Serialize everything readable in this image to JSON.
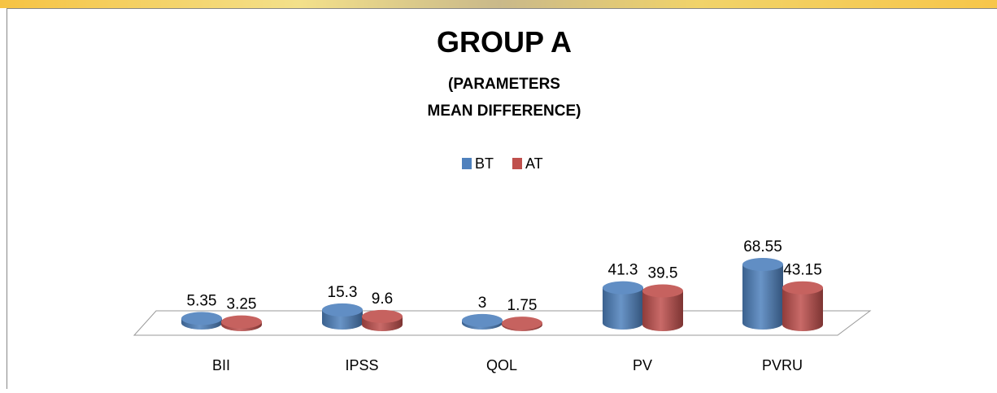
{
  "chart_data": {
    "type": "bar3d",
    "title": "GROUP A",
    "subtitle": [
      "(PARAMETERS",
      "MEAN DIFFERENCE)"
    ],
    "categories": [
      "BII",
      "IPSS",
      "QOL",
      "PV",
      "PVRU"
    ],
    "series": [
      {
        "name": "BT",
        "color": "#4f81bd",
        "values": [
          5.35,
          15.3,
          3,
          41.3,
          68.55
        ]
      },
      {
        "name": "AT",
        "color": "#c0504d",
        "values": [
          3.25,
          9.6,
          1.75,
          39.5,
          43.15
        ]
      }
    ],
    "legend": "top"
  }
}
